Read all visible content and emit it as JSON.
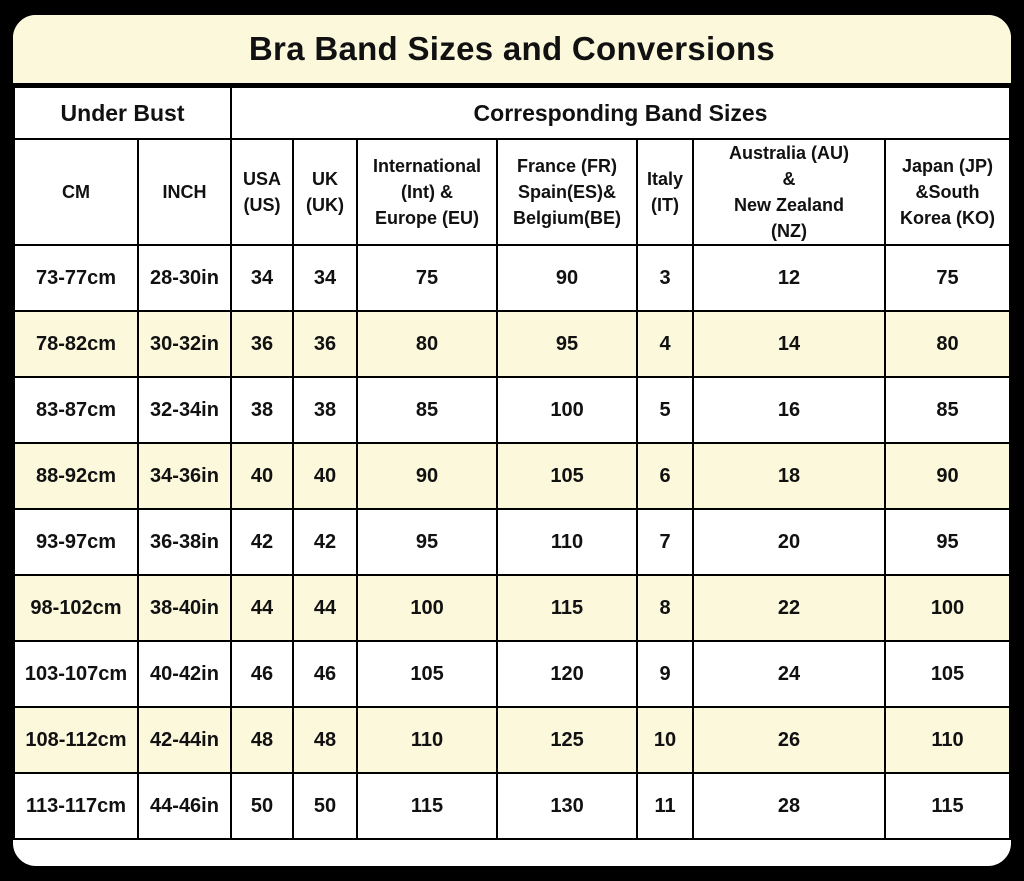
{
  "title": "Bra Band Sizes and Conversions",
  "colors": {
    "page_bg": "#000000",
    "table_bg": "#FFFFFF",
    "title_bg": "#FBF8DC",
    "stripe": "#FBF8DC",
    "line": "#000000",
    "text": "#111111"
  },
  "chart_data": {
    "type": "table",
    "title": "Bra Band Sizes and Conversions",
    "group_headers": [
      {
        "label": "Under Bust",
        "colspan": 2
      },
      {
        "label": "Corresponding Band Sizes",
        "colspan": 7
      }
    ],
    "columns": [
      {
        "key": "cm",
        "label": "CM"
      },
      {
        "key": "inch",
        "label": "INCH"
      },
      {
        "key": "us",
        "label": "USA\n(US)"
      },
      {
        "key": "uk",
        "label": "UK\n(UK)"
      },
      {
        "key": "eu",
        "label": "International\n(Int) &\nEurope (EU)"
      },
      {
        "key": "fr",
        "label": "France (FR)\nSpain(ES)&\nBelgium(BE)"
      },
      {
        "key": "it",
        "label": "Italy\n(IT)"
      },
      {
        "key": "au",
        "label": "Australia (AU)\n&\nNew Zealand\n(NZ)"
      },
      {
        "key": "jp",
        "label": "Japan (JP)\n&South\nKorea (KO)"
      }
    ],
    "rows": [
      [
        "73-77cm",
        "28-30in",
        "34",
        "34",
        "75",
        "90",
        "3",
        "12",
        "75"
      ],
      [
        "78-82cm",
        "30-32in",
        "36",
        "36",
        "80",
        "95",
        "4",
        "14",
        "80"
      ],
      [
        "83-87cm",
        "32-34in",
        "38",
        "38",
        "85",
        "100",
        "5",
        "16",
        "85"
      ],
      [
        "88-92cm",
        "34-36in",
        "40",
        "40",
        "90",
        "105",
        "6",
        "18",
        "90"
      ],
      [
        "93-97cm",
        "36-38in",
        "42",
        "42",
        "95",
        "110",
        "7",
        "20",
        "95"
      ],
      [
        "98-102cm",
        "38-40in",
        "44",
        "44",
        "100",
        "115",
        "8",
        "22",
        "100"
      ],
      [
        "103-107cm",
        "40-42in",
        "46",
        "46",
        "105",
        "120",
        "9",
        "24",
        "105"
      ],
      [
        "108-112cm",
        "42-44in",
        "48",
        "48",
        "110",
        "125",
        "10",
        "26",
        "110"
      ],
      [
        "113-117cm",
        "44-46in",
        "50",
        "50",
        "115",
        "130",
        "11",
        "28",
        "115"
      ]
    ],
    "layout_hints": {
      "striped_rows": "even rows cream",
      "all_text_bold": true,
      "rounded_card_on_black_background": true
    }
  }
}
